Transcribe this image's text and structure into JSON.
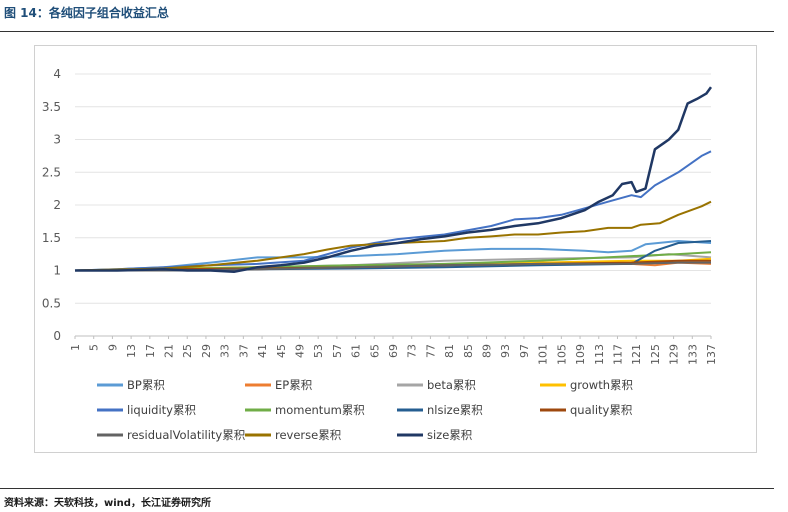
{
  "figure": {
    "title": "图 14：各纯因子组合收益汇总",
    "source": "资料来源：天软科技，wind，长江证券研究所"
  },
  "chart_data": {
    "type": "line",
    "title": "",
    "xlabel": "",
    "ylabel": "",
    "ylim": [
      0,
      4
    ],
    "yticks": [
      "0",
      "0.5",
      "1",
      "1.5",
      "2",
      "2.5",
      "3",
      "3.5",
      "4"
    ],
    "xlim": [
      1,
      137
    ],
    "xticks": [
      1,
      5,
      9,
      13,
      17,
      21,
      25,
      29,
      33,
      37,
      41,
      45,
      49,
      53,
      57,
      61,
      65,
      69,
      73,
      77,
      81,
      85,
      89,
      93,
      97,
      101,
      105,
      109,
      113,
      117,
      121,
      125,
      129,
      133,
      137
    ],
    "grid": true,
    "legend_position": "bottom",
    "series": [
      {
        "name": "BP累积",
        "color": "#5b9bd5",
        "width": 2,
        "points": [
          [
            1,
            1
          ],
          [
            10,
            1.02
          ],
          [
            20,
            1.05
          ],
          [
            30,
            1.12
          ],
          [
            40,
            1.2
          ],
          [
            50,
            1.2
          ],
          [
            60,
            1.22
          ],
          [
            70,
            1.25
          ],
          [
            80,
            1.3
          ],
          [
            90,
            1.33
          ],
          [
            100,
            1.33
          ],
          [
            110,
            1.3
          ],
          [
            115,
            1.28
          ],
          [
            120,
            1.3
          ],
          [
            123,
            1.4
          ],
          [
            130,
            1.45
          ],
          [
            137,
            1.42
          ]
        ]
      },
      {
        "name": "EP累积",
        "color": "#ed7d31",
        "width": 2,
        "points": [
          [
            1,
            1
          ],
          [
            20,
            1.0
          ],
          [
            40,
            1.02
          ],
          [
            60,
            1.05
          ],
          [
            80,
            1.08
          ],
          [
            100,
            1.12
          ],
          [
            120,
            1.1
          ],
          [
            125,
            1.08
          ],
          [
            130,
            1.12
          ],
          [
            137,
            1.1
          ]
        ]
      },
      {
        "name": "beta累积",
        "color": "#a5a5a5",
        "width": 2,
        "points": [
          [
            1,
            1
          ],
          [
            20,
            1.0
          ],
          [
            40,
            1.05
          ],
          [
            60,
            1.08
          ],
          [
            80,
            1.15
          ],
          [
            100,
            1.18
          ],
          [
            120,
            1.2
          ],
          [
            128,
            1.25
          ],
          [
            137,
            1.2
          ]
        ]
      },
      {
        "name": "growth累积",
        "color": "#ffc000",
        "width": 2,
        "points": [
          [
            1,
            1
          ],
          [
            20,
            1.03
          ],
          [
            40,
            1.05
          ],
          [
            60,
            1.05
          ],
          [
            80,
            1.08
          ],
          [
            100,
            1.12
          ],
          [
            120,
            1.15
          ],
          [
            130,
            1.15
          ],
          [
            137,
            1.18
          ]
        ]
      },
      {
        "name": "liquidity累积",
        "color": "#4472c4",
        "width": 2,
        "points": [
          [
            1,
            1
          ],
          [
            10,
            1.02
          ],
          [
            20,
            1.05
          ],
          [
            30,
            1.08
          ],
          [
            40,
            1.1
          ],
          [
            50,
            1.15
          ],
          [
            60,
            1.35
          ],
          [
            65,
            1.42
          ],
          [
            70,
            1.48
          ],
          [
            80,
            1.55
          ],
          [
            90,
            1.68
          ],
          [
            95,
            1.78
          ],
          [
            100,
            1.8
          ],
          [
            105,
            1.85
          ],
          [
            110,
            1.95
          ],
          [
            115,
            2.05
          ],
          [
            120,
            2.15
          ],
          [
            122,
            2.12
          ],
          [
            125,
            2.3
          ],
          [
            130,
            2.5
          ],
          [
            135,
            2.75
          ],
          [
            137,
            2.82
          ]
        ]
      },
      {
        "name": "momentum累积",
        "color": "#70ad47",
        "width": 2,
        "points": [
          [
            1,
            1
          ],
          [
            20,
            1.02
          ],
          [
            40,
            1.05
          ],
          [
            60,
            1.08
          ],
          [
            80,
            1.1
          ],
          [
            100,
            1.15
          ],
          [
            120,
            1.22
          ],
          [
            130,
            1.25
          ],
          [
            137,
            1.28
          ]
        ]
      },
      {
        "name": "nlsize累积",
        "color": "#255e91",
        "width": 2,
        "points": [
          [
            1,
            1
          ],
          [
            20,
            1.0
          ],
          [
            40,
            1.02
          ],
          [
            60,
            1.03
          ],
          [
            80,
            1.05
          ],
          [
            100,
            1.08
          ],
          [
            120,
            1.1
          ],
          [
            125,
            1.3
          ],
          [
            130,
            1.42
          ],
          [
            137,
            1.45
          ]
        ]
      },
      {
        "name": "quality累积",
        "color": "#9e480e",
        "width": 2,
        "points": [
          [
            1,
            1
          ],
          [
            20,
            1.02
          ],
          [
            40,
            1.03
          ],
          [
            60,
            1.05
          ],
          [
            80,
            1.08
          ],
          [
            100,
            1.1
          ],
          [
            120,
            1.12
          ],
          [
            130,
            1.15
          ],
          [
            137,
            1.15
          ]
        ]
      },
      {
        "name": "residualVolatility累积",
        "color": "#636363",
        "width": 2,
        "points": [
          [
            1,
            1
          ],
          [
            20,
            1.0
          ],
          [
            40,
            1.02
          ],
          [
            60,
            1.05
          ],
          [
            80,
            1.08
          ],
          [
            100,
            1.1
          ],
          [
            120,
            1.1
          ],
          [
            130,
            1.12
          ],
          [
            137,
            1.12
          ]
        ]
      },
      {
        "name": "reverse累积",
        "color": "#997300",
        "width": 2,
        "points": [
          [
            1,
            1
          ],
          [
            20,
            1.03
          ],
          [
            30,
            1.08
          ],
          [
            40,
            1.15
          ],
          [
            50,
            1.25
          ],
          [
            55,
            1.32
          ],
          [
            60,
            1.38
          ],
          [
            65,
            1.4
          ],
          [
            70,
            1.42
          ],
          [
            80,
            1.45
          ],
          [
            85,
            1.5
          ],
          [
            90,
            1.52
          ],
          [
            95,
            1.55
          ],
          [
            100,
            1.55
          ],
          [
            105,
            1.58
          ],
          [
            110,
            1.6
          ],
          [
            115,
            1.65
          ],
          [
            120,
            1.65
          ],
          [
            122,
            1.7
          ],
          [
            126,
            1.72
          ],
          [
            130,
            1.85
          ],
          [
            135,
            1.98
          ],
          [
            137,
            2.05
          ]
        ]
      },
      {
        "name": "size累积",
        "color": "#203864",
        "width": 2.5,
        "points": [
          [
            1,
            1
          ],
          [
            10,
            1.0
          ],
          [
            20,
            1.02
          ],
          [
            25,
            1.0
          ],
          [
            30,
            1.0
          ],
          [
            35,
            0.98
          ],
          [
            40,
            1.05
          ],
          [
            45,
            1.08
          ],
          [
            50,
            1.12
          ],
          [
            55,
            1.2
          ],
          [
            60,
            1.3
          ],
          [
            65,
            1.38
          ],
          [
            70,
            1.42
          ],
          [
            75,
            1.48
          ],
          [
            80,
            1.52
          ],
          [
            85,
            1.58
          ],
          [
            90,
            1.62
          ],
          [
            95,
            1.68
          ],
          [
            100,
            1.72
          ],
          [
            105,
            1.8
          ],
          [
            110,
            1.92
          ],
          [
            113,
            2.05
          ],
          [
            116,
            2.15
          ],
          [
            118,
            2.32
          ],
          [
            120,
            2.35
          ],
          [
            121,
            2.2
          ],
          [
            123,
            2.25
          ],
          [
            125,
            2.85
          ],
          [
            127,
            2.95
          ],
          [
            128,
            3.0
          ],
          [
            130,
            3.15
          ],
          [
            132,
            3.55
          ],
          [
            134,
            3.62
          ],
          [
            136,
            3.7
          ],
          [
            137,
            3.8
          ]
        ]
      }
    ]
  }
}
